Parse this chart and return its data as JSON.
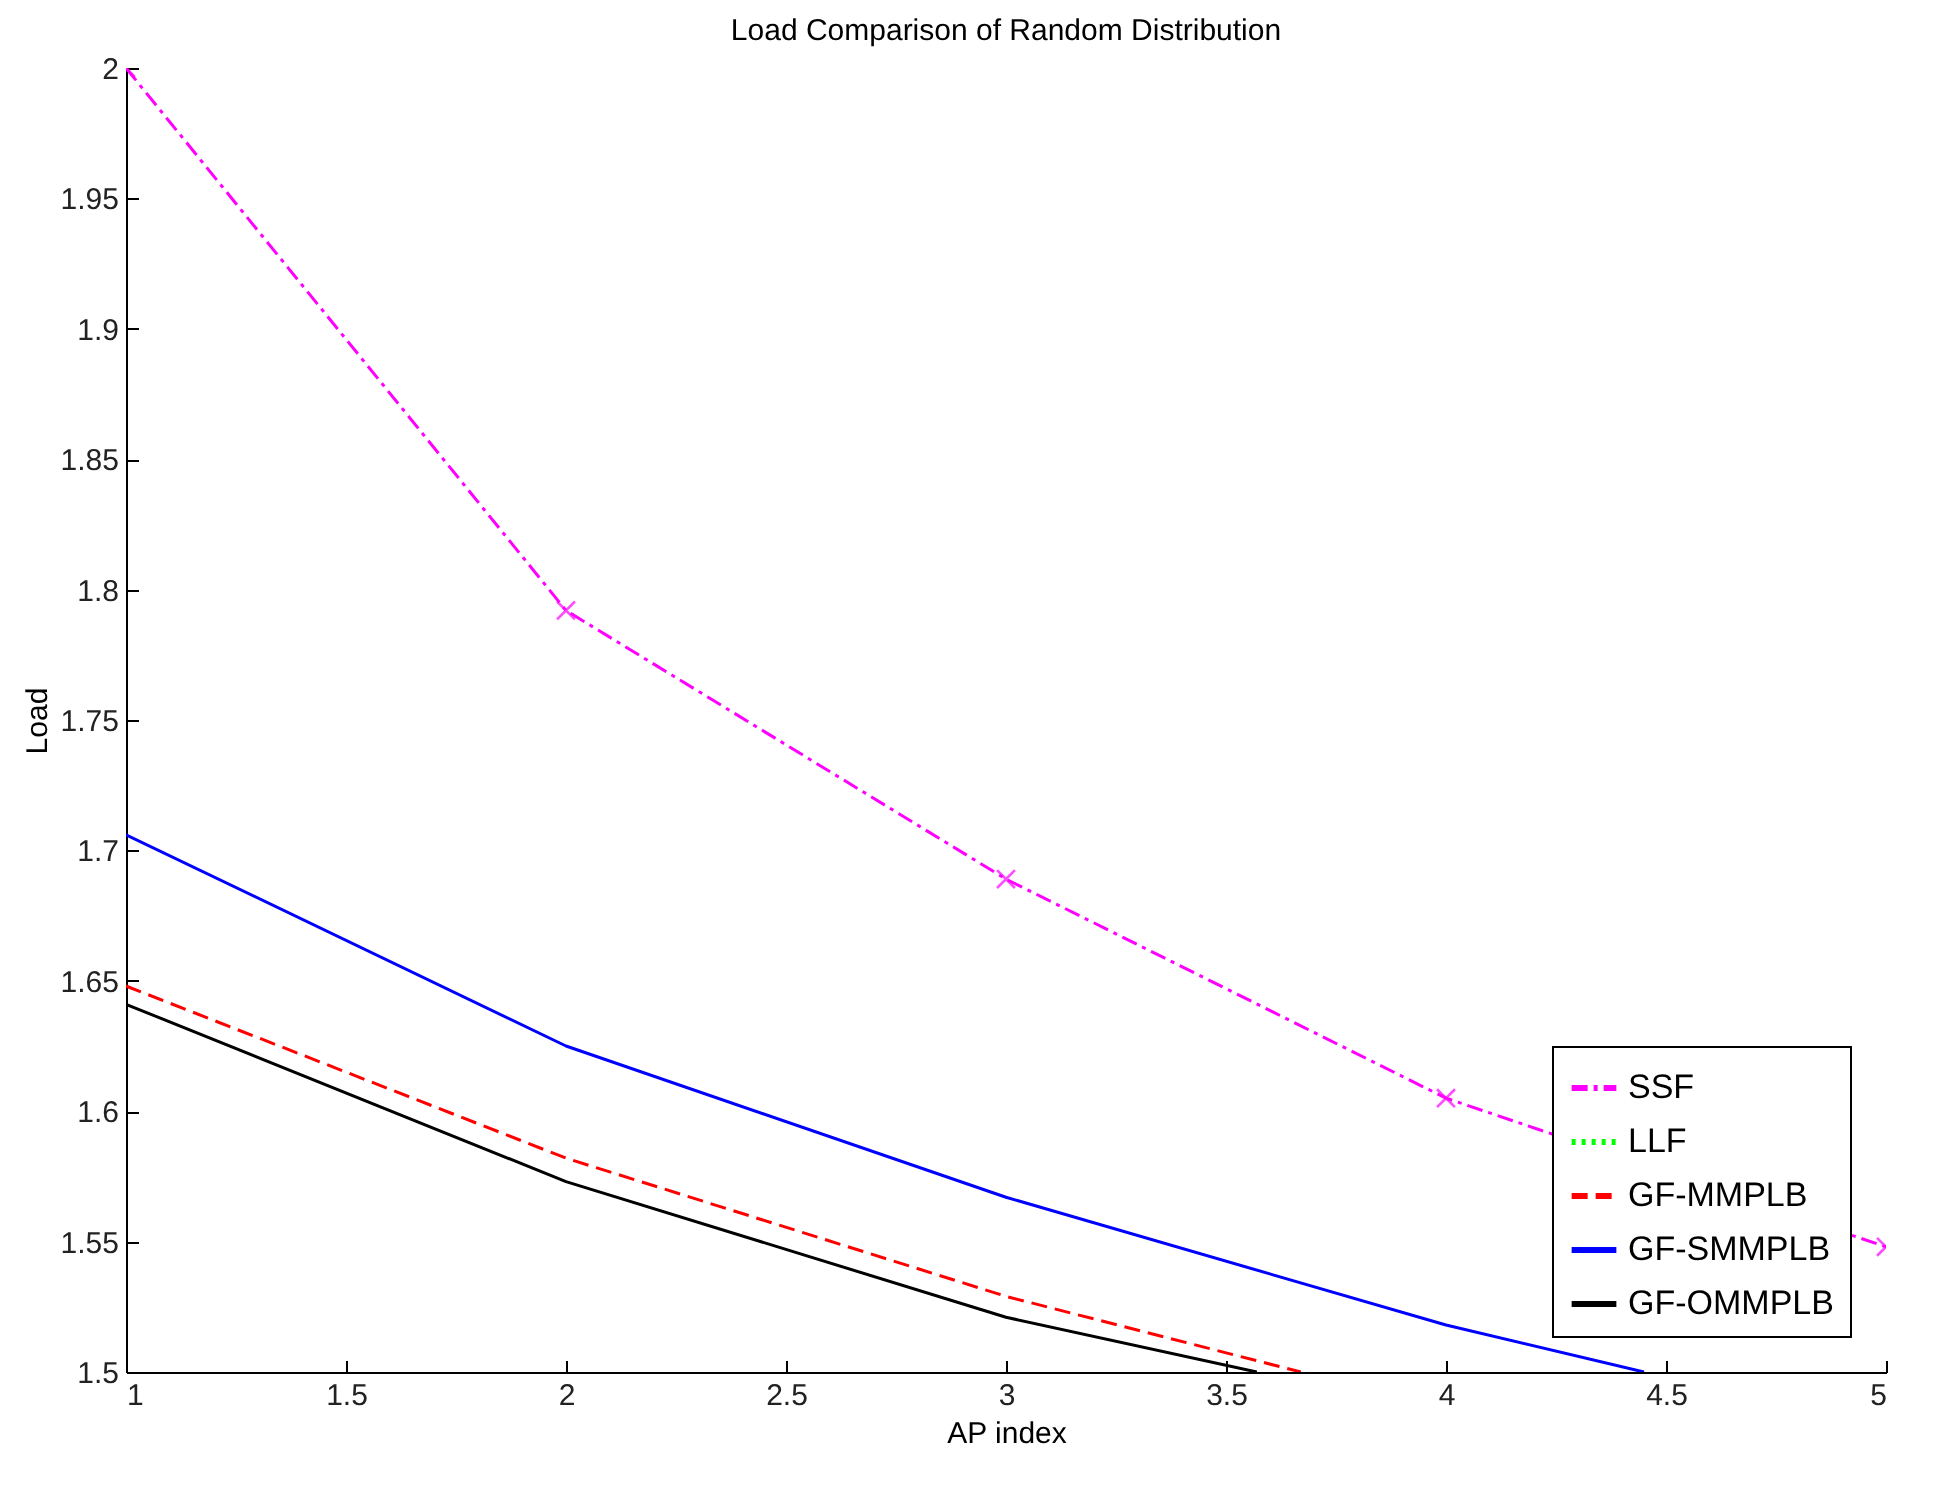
{
  "chart_data": {
    "type": "line",
    "title": "Load Comparison of Random Distribution",
    "xlabel": "AP index",
    "ylabel": "Load",
    "x": [
      1,
      2,
      3,
      4,
      5
    ],
    "series": [
      {
        "name": "SSF",
        "color": "#ff00ff",
        "values": [
          2.0,
          1.792,
          1.689,
          1.605,
          1.548
        ],
        "line_style": "dashdot",
        "marker": "cross"
      },
      {
        "name": "LLF",
        "color": "#00ff00",
        "values": [
          null,
          null,
          null,
          null,
          null
        ],
        "line_style": "dotted",
        "marker": "none"
      },
      {
        "name": "GF-MMPLB",
        "color": "#ff0000",
        "x": [
          1,
          2,
          3,
          3.67
        ],
        "values": [
          1.648,
          1.582,
          1.529,
          1.5
        ],
        "line_style": "dashed",
        "marker": "none"
      },
      {
        "name": "GF-SMMPLB",
        "color": "#0000ff",
        "x": [
          1,
          2,
          3,
          4,
          4.45
        ],
        "values": [
          1.706,
          1.625,
          1.567,
          1.518,
          1.5
        ],
        "line_style": "solid",
        "marker": "none"
      },
      {
        "name": "GF-OMMPLB",
        "color": "#000000",
        "x": [
          1,
          2,
          3,
          3.57
        ],
        "values": [
          1.641,
          1.573,
          1.521,
          1.5
        ],
        "line_style": "solid",
        "marker": "none"
      }
    ],
    "xlim": [
      1,
      5
    ],
    "xticks": [
      1,
      1.5,
      2,
      2.5,
      3,
      3.5,
      4,
      4.5,
      5
    ],
    "ylim": [
      1.5,
      2
    ],
    "yticks": [
      1.5,
      1.55,
      1.6,
      1.65,
      1.7,
      1.75,
      1.8,
      1.85,
      1.9,
      1.95,
      2
    ],
    "grid": false,
    "legend": "bottom right"
  }
}
